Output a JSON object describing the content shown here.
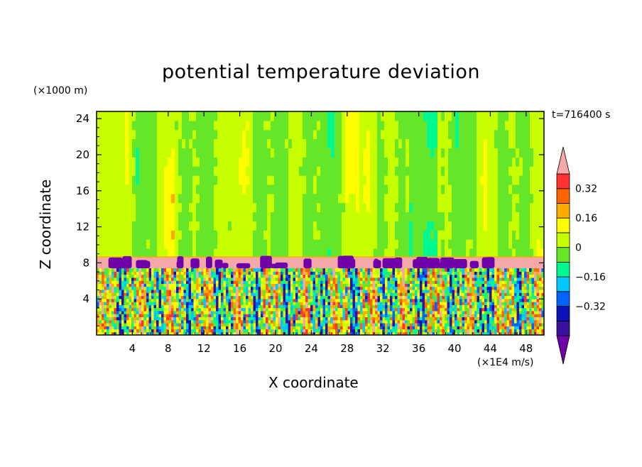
{
  "chart_data": {
    "type": "heatmap",
    "title": "potential temperature deviation",
    "xlabel": "X coordinate",
    "ylabel": "Z coordinate",
    "x_unit": "(×1E4 m/s)",
    "y_unit": "(×1000 m)",
    "time_label": "t=716400 s",
    "xlim": [
      0,
      50
    ],
    "ylim": [
      0,
      24.8
    ],
    "xticks": [
      4,
      8,
      12,
      16,
      20,
      24,
      28,
      32,
      36,
      40,
      44,
      48
    ],
    "yticks": [
      4,
      8,
      12,
      16,
      20,
      24
    ],
    "colorbar": {
      "levels": [
        -0.48,
        -0.4,
        -0.32,
        -0.24,
        -0.16,
        -0.08,
        0,
        0.08,
        0.16,
        0.24,
        0.32,
        0.4
      ],
      "tick_labels": [
        "0.32",
        "0.16",
        "0",
        "−0.16",
        "−0.32"
      ],
      "tick_values": [
        0.32,
        0.16,
        0,
        -0.16,
        -0.32
      ],
      "colors": [
        "#7000a8",
        "#3a109e",
        "#0a14b8",
        "#0064f8",
        "#00c8ff",
        "#00f890",
        "#66e628",
        "#c8ff00",
        "#ffff00",
        "#ffaa00",
        "#ff6400",
        "#ff3232",
        "#f5a8a8"
      ],
      "extend": "both"
    },
    "structure": {
      "upper_layer": {
        "z_range": [
          8.6,
          24.8
        ],
        "value_range": [
          -0.16,
          0.16
        ]
      },
      "inversion_layer": {
        "z_range": [
          7.4,
          8.6
        ],
        "value": 0.45
      },
      "lower_layer": {
        "z_range": [
          0,
          7.4
        ],
        "value_range": [
          -0.48,
          0.45
        ]
      }
    }
  }
}
